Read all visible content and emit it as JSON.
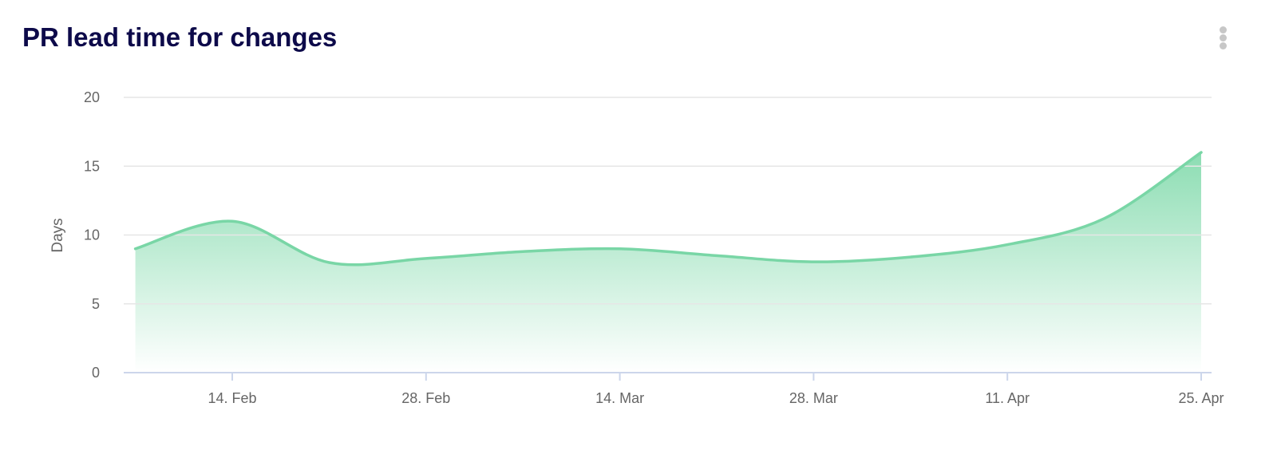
{
  "header": {
    "title": "PR lead time for changes",
    "menu_icon": "vertical-ellipsis-icon"
  },
  "chart_data": {
    "type": "area",
    "title": "PR lead time for changes",
    "xlabel": "",
    "ylabel": "Days",
    "ylim": [
      0,
      20
    ],
    "yticks": [
      "0",
      "5",
      "10",
      "15",
      "20"
    ],
    "xticks": [
      "14. Feb",
      "28. Feb",
      "14. Mar",
      "28. Mar",
      "11. Apr",
      "25. Apr"
    ],
    "x": [
      "7. Feb",
      "14. Feb",
      "21. Feb",
      "28. Feb",
      "7. Mar",
      "14. Mar",
      "21. Mar",
      "28. Mar",
      "4. Apr",
      "11. Apr",
      "18. Apr",
      "25. Apr"
    ],
    "values": [
      9.0,
      11.0,
      8.0,
      8.3,
      8.8,
      9.0,
      8.5,
      8.05,
      8.4,
      9.3,
      11.2,
      16.0
    ],
    "grid": true,
    "legend": "none",
    "colors": {
      "line": "#79d6a6",
      "fill": "#7fd9aa",
      "grid": "#e6e6e6",
      "axis": "#ccd6eb"
    }
  }
}
